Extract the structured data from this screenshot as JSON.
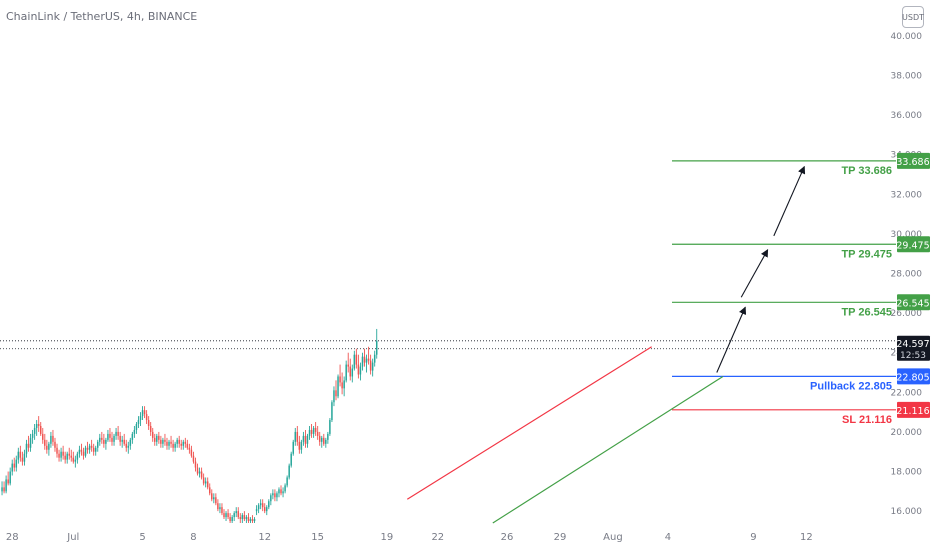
{
  "header": {
    "symbol_title": "ChainLink / TetherUS, 4h, BINANCE",
    "currency": "USDT"
  },
  "colors": {
    "up": "#26a69a",
    "down": "#ef5350",
    "tp": "#43a047",
    "pullback": "#2962ff",
    "sl": "#f23645",
    "channel_upper": "#f23645",
    "channel_lower": "#43a047",
    "price_tag_bg": "#131722",
    "axis_text": "#787b86"
  },
  "chart_data": {
    "type": "candlestick",
    "y_axis_ticks": [
      "16.000",
      "18.000",
      "20.000",
      "22.000",
      "24.000",
      "26.000",
      "28.000",
      "30.000",
      "32.000",
      "34.000",
      "36.000",
      "38.000",
      "40.000"
    ],
    "ylim": [
      15.3,
      40.8
    ],
    "x_axis_ticks": [
      {
        "label": "28",
        "index": 6
      },
      {
        "label": "Jul",
        "index": 36
      },
      {
        "label": "5",
        "index": 70
      },
      {
        "label": "8",
        "index": 95
      },
      {
        "label": "12",
        "index": 130
      },
      {
        "label": "15",
        "index": 156
      },
      {
        "label": "19",
        "index": 190
      },
      {
        "label": "22",
        "index": 215
      },
      {
        "label": "26",
        "index": 249
      },
      {
        "label": "29",
        "index": 275
      },
      {
        "label": "Aug",
        "index": 301
      },
      {
        "label": "4",
        "index": 328
      },
      {
        "label": "9",
        "index": 370
      },
      {
        "label": "12",
        "index": 396
      }
    ],
    "xlim": [
      0,
      440
    ],
    "current_price": "24.597",
    "countdown": "12:53",
    "levels": [
      {
        "label": "TP 33.686",
        "tag": "33.686",
        "value": 33.686,
        "kind": "tp"
      },
      {
        "label": "TP 29.475",
        "tag": "29.475",
        "value": 29.475,
        "kind": "tp"
      },
      {
        "label": "TP 26.545",
        "tag": "26.545",
        "value": 26.545,
        "kind": "tp"
      },
      {
        "label": "Pullback 22.805",
        "tag": "22.805",
        "value": 22.805,
        "kind": "pullback"
      },
      {
        "label": "SL 21.116",
        "tag": "21.116",
        "value": 21.116,
        "kind": "sl"
      }
    ],
    "channel": {
      "upper": [
        [
          200,
          16.6
        ],
        [
          320,
          24.3
        ]
      ],
      "lower": [
        [
          242,
          15.4
        ],
        [
          355,
          22.8
        ]
      ]
    },
    "arrows": [
      [
        [
          352,
          23.0
        ],
        [
          366,
          26.3
        ]
      ],
      [
        [
          364,
          26.8
        ],
        [
          377,
          29.2
        ]
      ],
      [
        [
          380,
          29.9
        ],
        [
          395,
          33.4
        ]
      ]
    ],
    "dotted_lines": [
      24.6,
      24.2
    ],
    "candles": [
      [
        17.0,
        17.5,
        16.8,
        17.2
      ],
      [
        17.2,
        17.5,
        16.9,
        17.0
      ],
      [
        17.0,
        17.8,
        16.9,
        17.6
      ],
      [
        17.6,
        18.0,
        17.3,
        17.4
      ],
      [
        17.4,
        18.2,
        17.3,
        18.0
      ],
      [
        18.0,
        18.6,
        17.8,
        18.4
      ],
      [
        18.4,
        18.7,
        18.0,
        18.2
      ],
      [
        18.2,
        18.8,
        18.0,
        18.6
      ],
      [
        18.6,
        19.2,
        18.4,
        19.0
      ],
      [
        19.0,
        19.3,
        18.5,
        18.7
      ],
      [
        18.7,
        19.0,
        18.3,
        18.5
      ],
      [
        18.5,
        19.1,
        18.3,
        18.9
      ],
      [
        18.9,
        19.6,
        18.7,
        19.4
      ],
      [
        19.4,
        19.8,
        19.0,
        19.2
      ],
      [
        19.2,
        19.9,
        19.0,
        19.7
      ],
      [
        19.7,
        20.1,
        19.4,
        19.9
      ],
      [
        19.9,
        20.4,
        19.6,
        20.2
      ],
      [
        20.2,
        20.6,
        19.8,
        20.4
      ],
      [
        20.4,
        20.8,
        20.0,
        20.3
      ],
      [
        20.3,
        20.5,
        19.8,
        19.9
      ],
      [
        19.9,
        20.2,
        19.4,
        19.6
      ],
      [
        19.6,
        19.9,
        19.1,
        19.3
      ],
      [
        19.3,
        19.6,
        18.9,
        19.1
      ],
      [
        19.1,
        19.5,
        18.8,
        19.4
      ],
      [
        19.4,
        20.0,
        19.2,
        19.8
      ],
      [
        19.8,
        20.1,
        19.3,
        19.5
      ],
      [
        19.5,
        19.7,
        19.0,
        19.2
      ],
      [
        19.2,
        19.4,
        18.7,
        18.9
      ],
      [
        18.9,
        19.1,
        18.5,
        18.7
      ],
      [
        18.7,
        19.2,
        18.5,
        19.0
      ],
      [
        19.0,
        19.3,
        18.6,
        18.8
      ],
      [
        18.8,
        19.0,
        18.4,
        18.6
      ],
      [
        18.6,
        19.0,
        18.4,
        18.9
      ],
      [
        18.9,
        19.2,
        18.6,
        18.8
      ],
      [
        18.8,
        19.1,
        18.5,
        18.7
      ],
      [
        18.7,
        19.0,
        18.4,
        18.5
      ],
      [
        18.5,
        18.8,
        18.2,
        18.6
      ],
      [
        18.6,
        19.0,
        18.4,
        18.9
      ],
      [
        18.9,
        19.3,
        18.7,
        19.1
      ],
      [
        19.1,
        19.4,
        18.8,
        19.0
      ],
      [
        19.0,
        19.2,
        18.6,
        18.8
      ],
      [
        18.8,
        19.3,
        18.7,
        19.2
      ],
      [
        19.2,
        19.5,
        18.9,
        19.1
      ],
      [
        19.1,
        19.4,
        18.9,
        19.3
      ],
      [
        19.3,
        19.6,
        19.0,
        19.2
      ],
      [
        19.2,
        19.4,
        18.8,
        19.0
      ],
      [
        19.0,
        19.3,
        18.8,
        19.2
      ],
      [
        19.2,
        19.6,
        19.0,
        19.5
      ],
      [
        19.5,
        19.9,
        19.3,
        19.7
      ],
      [
        19.7,
        20.0,
        19.4,
        19.6
      ],
      [
        19.6,
        19.9,
        19.2,
        19.4
      ],
      [
        19.4,
        19.7,
        19.1,
        19.6
      ],
      [
        19.6,
        20.1,
        19.5,
        19.9
      ],
      [
        19.9,
        20.2,
        19.5,
        19.7
      ],
      [
        19.7,
        20.0,
        19.3,
        19.5
      ],
      [
        19.5,
        19.9,
        19.3,
        19.8
      ],
      [
        19.8,
        20.2,
        19.6,
        20.0
      ],
      [
        20.0,
        20.3,
        19.6,
        19.8
      ],
      [
        19.8,
        20.0,
        19.3,
        19.5
      ],
      [
        19.5,
        19.8,
        19.2,
        19.6
      ],
      [
        19.6,
        19.9,
        19.3,
        19.4
      ],
      [
        19.4,
        19.6,
        19.0,
        19.2
      ],
      [
        19.2,
        19.5,
        18.9,
        19.3
      ],
      [
        19.3,
        19.7,
        19.1,
        19.6
      ],
      [
        19.6,
        20.0,
        19.4,
        19.9
      ],
      [
        19.9,
        20.3,
        19.7,
        20.1
      ],
      [
        20.1,
        20.5,
        19.9,
        20.4
      ],
      [
        20.4,
        20.8,
        20.2,
        20.6
      ],
      [
        20.6,
        21.0,
        20.3,
        20.8
      ],
      [
        20.8,
        21.3,
        20.6,
        21.1
      ],
      [
        21.1,
        21.3,
        20.7,
        20.9
      ],
      [
        20.9,
        21.1,
        20.4,
        20.6
      ],
      [
        20.6,
        20.8,
        20.1,
        20.3
      ],
      [
        20.3,
        20.5,
        19.8,
        20.0
      ],
      [
        20.0,
        20.2,
        19.5,
        19.7
      ],
      [
        19.7,
        19.9,
        19.3,
        19.5
      ],
      [
        19.5,
        19.9,
        19.3,
        19.8
      ],
      [
        19.8,
        20.0,
        19.4,
        19.6
      ],
      [
        19.6,
        19.8,
        19.2,
        19.4
      ],
      [
        19.4,
        19.7,
        19.2,
        19.6
      ],
      [
        19.6,
        19.9,
        19.3,
        19.5
      ],
      [
        19.5,
        19.7,
        19.1,
        19.3
      ],
      [
        19.3,
        19.6,
        19.1,
        19.5
      ],
      [
        19.5,
        19.8,
        19.2,
        19.4
      ],
      [
        19.4,
        19.6,
        19.0,
        19.2
      ],
      [
        19.2,
        19.5,
        19.0,
        19.4
      ],
      [
        19.4,
        19.7,
        19.2,
        19.6
      ],
      [
        19.6,
        19.8,
        19.2,
        19.4
      ],
      [
        19.4,
        19.6,
        19.1,
        19.3
      ],
      [
        19.3,
        19.6,
        19.1,
        19.5
      ],
      [
        19.5,
        19.7,
        19.2,
        19.4
      ],
      [
        19.4,
        19.6,
        19.1,
        19.2
      ],
      [
        19.2,
        19.4,
        18.9,
        19.1
      ],
      [
        19.1,
        19.3,
        18.7,
        18.8
      ],
      [
        18.8,
        19.0,
        18.4,
        18.5
      ],
      [
        18.5,
        18.7,
        18.0,
        18.2
      ],
      [
        18.2,
        18.4,
        17.8,
        17.9
      ],
      [
        17.9,
        18.2,
        17.7,
        18.0
      ],
      [
        18.0,
        18.2,
        17.6,
        17.7
      ],
      [
        17.7,
        17.9,
        17.3,
        17.4
      ],
      [
        17.4,
        17.7,
        17.2,
        17.5
      ],
      [
        17.5,
        17.7,
        17.1,
        17.2
      ],
      [
        17.2,
        17.4,
        16.8,
        16.9
      ],
      [
        16.9,
        17.1,
        16.5,
        16.6
      ],
      [
        16.6,
        16.9,
        16.4,
        16.7
      ],
      [
        16.7,
        16.9,
        16.3,
        16.4
      ],
      [
        16.4,
        16.6,
        16.0,
        16.1
      ],
      [
        16.1,
        16.4,
        15.9,
        16.2
      ],
      [
        16.2,
        16.4,
        15.8,
        15.9
      ],
      [
        15.9,
        16.1,
        15.6,
        15.7
      ],
      [
        15.7,
        16.0,
        15.5,
        15.9
      ],
      [
        15.9,
        16.1,
        15.6,
        15.7
      ],
      [
        15.7,
        15.9,
        15.4,
        15.5
      ],
      [
        15.5,
        15.8,
        15.4,
        15.7
      ],
      [
        15.7,
        16.0,
        15.5,
        15.9
      ],
      [
        15.9,
        16.2,
        15.7,
        16.0
      ],
      [
        16.0,
        16.2,
        15.6,
        15.7
      ],
      [
        15.7,
        15.9,
        15.4,
        15.6
      ],
      [
        15.6,
        15.9,
        15.4,
        15.8
      ],
      [
        15.8,
        16.0,
        15.5,
        15.6
      ],
      [
        15.6,
        15.8,
        15.4,
        15.7
      ],
      [
        15.7,
        15.9,
        15.4,
        15.5
      ],
      [
        15.5,
        15.7,
        15.4,
        15.6
      ],
      [
        15.6,
        15.8,
        15.4,
        15.5
      ],
      [
        15.5,
        15.7,
        15.4,
        15.6
      ],
      [
        16.0,
        16.3,
        15.8,
        16.1
      ],
      [
        16.1,
        16.4,
        15.9,
        16.3
      ],
      [
        16.3,
        16.6,
        16.1,
        16.4
      ],
      [
        16.4,
        16.6,
        16.0,
        16.2
      ],
      [
        16.2,
        16.4,
        15.9,
        16.0
      ],
      [
        16.0,
        16.3,
        15.8,
        16.2
      ],
      [
        16.2,
        16.6,
        16.1,
        16.5
      ],
      [
        16.5,
        16.9,
        16.3,
        16.8
      ],
      [
        16.8,
        17.1,
        16.6,
        16.9
      ],
      [
        16.9,
        17.1,
        16.5,
        16.7
      ],
      [
        16.7,
        17.0,
        16.5,
        16.9
      ],
      [
        16.9,
        17.2,
        16.7,
        17.1
      ],
      [
        17.1,
        17.3,
        16.8,
        16.9
      ],
      [
        16.9,
        17.2,
        16.7,
        17.0
      ],
      [
        17.0,
        17.4,
        16.9,
        17.3
      ],
      [
        17.3,
        17.8,
        17.2,
        17.7
      ],
      [
        17.7,
        18.4,
        17.6,
        18.3
      ],
      [
        18.3,
        19.0,
        18.2,
        18.9
      ],
      [
        18.9,
        19.6,
        18.8,
        19.5
      ],
      [
        19.5,
        20.2,
        19.3,
        20.0
      ],
      [
        20.0,
        20.3,
        19.3,
        19.5
      ],
      [
        19.5,
        19.8,
        18.9,
        19.1
      ],
      [
        19.1,
        19.6,
        18.9,
        19.5
      ],
      [
        19.5,
        20.0,
        19.3,
        19.8
      ],
      [
        19.8,
        20.1,
        19.2,
        19.4
      ],
      [
        19.4,
        19.9,
        19.2,
        19.8
      ],
      [
        19.8,
        20.3,
        19.6,
        20.1
      ],
      [
        20.1,
        20.4,
        19.7,
        19.9
      ],
      [
        19.9,
        20.3,
        19.7,
        20.2
      ],
      [
        20.2,
        20.5,
        19.8,
        20.0
      ],
      [
        20.0,
        20.3,
        19.6,
        19.8
      ],
      [
        19.8,
        20.0,
        19.3,
        19.5
      ],
      [
        19.5,
        19.8,
        19.2,
        19.7
      ],
      [
        19.7,
        19.9,
        19.3,
        19.4
      ],
      [
        19.4,
        19.7,
        19.2,
        19.6
      ],
      [
        19.6,
        20.0,
        19.4,
        19.9
      ],
      [
        19.9,
        20.7,
        19.8,
        20.6
      ],
      [
        20.6,
        21.6,
        20.5,
        21.5
      ],
      [
        21.5,
        22.3,
        21.3,
        22.1
      ],
      [
        22.1,
        22.6,
        21.6,
        21.8
      ],
      [
        21.8,
        22.9,
        21.7,
        22.8
      ],
      [
        22.8,
        23.4,
        22.3,
        22.5
      ],
      [
        22.5,
        23.0,
        21.9,
        22.2
      ],
      [
        22.2,
        22.8,
        21.8,
        22.6
      ],
      [
        22.6,
        23.6,
        22.5,
        23.4
      ],
      [
        23.4,
        24.0,
        23.0,
        23.3
      ],
      [
        23.3,
        23.7,
        22.6,
        22.8
      ],
      [
        22.8,
        23.4,
        22.5,
        23.2
      ],
      [
        23.2,
        24.1,
        23.1,
        23.9
      ],
      [
        23.9,
        24.2,
        23.2,
        23.4
      ],
      [
        23.4,
        23.9,
        22.7,
        22.9
      ],
      [
        22.9,
        23.5,
        22.6,
        23.3
      ],
      [
        23.3,
        24.0,
        23.1,
        23.8
      ],
      [
        23.8,
        24.2,
        23.3,
        23.5
      ],
      [
        23.5,
        23.9,
        23.0,
        23.7
      ],
      [
        23.7,
        24.3,
        23.4,
        23.6
      ],
      [
        23.6,
        23.9,
        22.9,
        23.1
      ],
      [
        23.1,
        23.7,
        22.8,
        23.5
      ],
      [
        23.5,
        24.1,
        23.3,
        23.9
      ],
      [
        23.9,
        25.2,
        23.7,
        24.6
      ]
    ]
  }
}
